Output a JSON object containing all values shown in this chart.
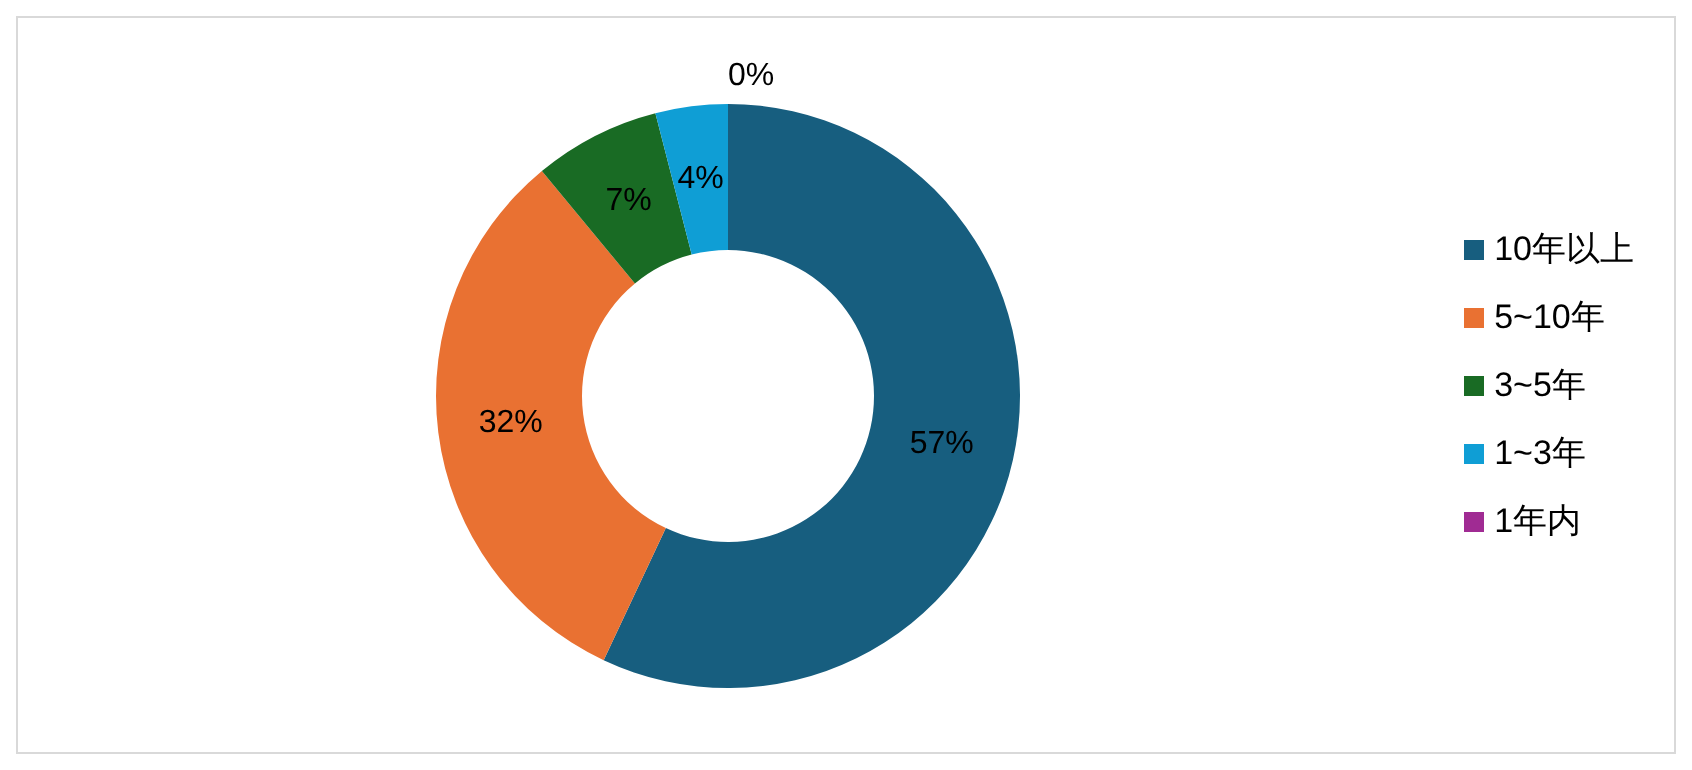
{
  "chart_data": {
    "type": "donut",
    "categories": [
      "10年以上",
      "5~10年",
      "3~5年",
      "1~3年",
      "1年内"
    ],
    "values": [
      57,
      32,
      7,
      4,
      0
    ],
    "colors": [
      "#175e7f",
      "#e97132",
      "#196b24",
      "#0f9ed5",
      "#a02b93"
    ],
    "value_labels": [
      "57%",
      "32%",
      "7%",
      "4%",
      "0%"
    ],
    "legend": "right"
  }
}
